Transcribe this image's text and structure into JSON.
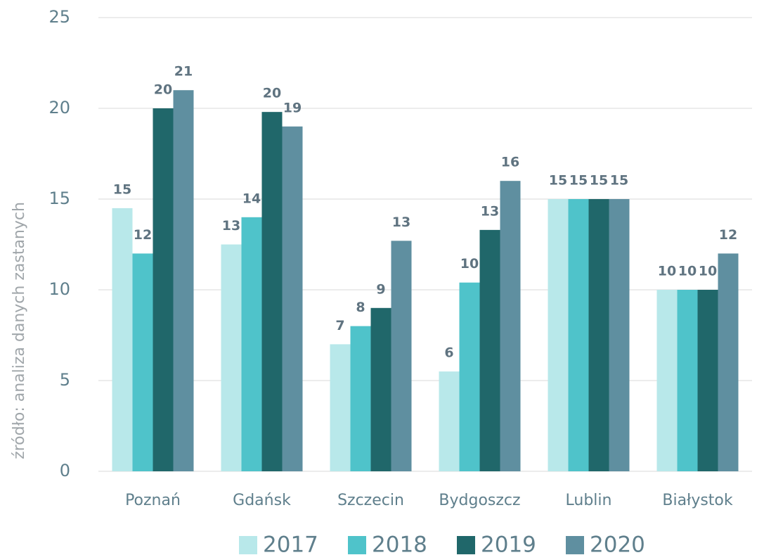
{
  "chart_data": {
    "type": "bar",
    "y_label": "źródło: analiza danych zastanych",
    "categories": [
      "Poznań",
      "Gdańsk",
      "Szczecin",
      "Bydgoszcz",
      "Lublin",
      "Białystok"
    ],
    "series": [
      {
        "name": "2017",
        "color": "#b8e8ea",
        "values": [
          14.5,
          12.5,
          7,
          5.5,
          15,
          10
        ],
        "value_labels": [
          "15",
          "13",
          "7",
          "6",
          "15",
          "10"
        ]
      },
      {
        "name": "2018",
        "color": "#4fc3ca",
        "values": [
          12,
          14,
          8,
          10.4,
          15,
          10
        ],
        "value_labels": [
          "12",
          "14",
          "8",
          "10",
          "15",
          "10"
        ]
      },
      {
        "name": "2019",
        "color": "#20676a",
        "values": [
          20,
          19.8,
          9,
          13.3,
          15,
          10
        ],
        "value_labels": [
          "20",
          "20",
          "9",
          "13",
          "15",
          "10"
        ]
      },
      {
        "name": "2020",
        "color": "#5f8fa0",
        "values": [
          21,
          19,
          12.7,
          16,
          15,
          12
        ],
        "value_labels": [
          "21",
          "19",
          "13",
          "16",
          "15",
          "12"
        ]
      }
    ],
    "ylim": [
      0,
      25
    ],
    "yticks": [
      0,
      5,
      10,
      15,
      20,
      25
    ],
    "grid": true,
    "legend": "bottom"
  }
}
